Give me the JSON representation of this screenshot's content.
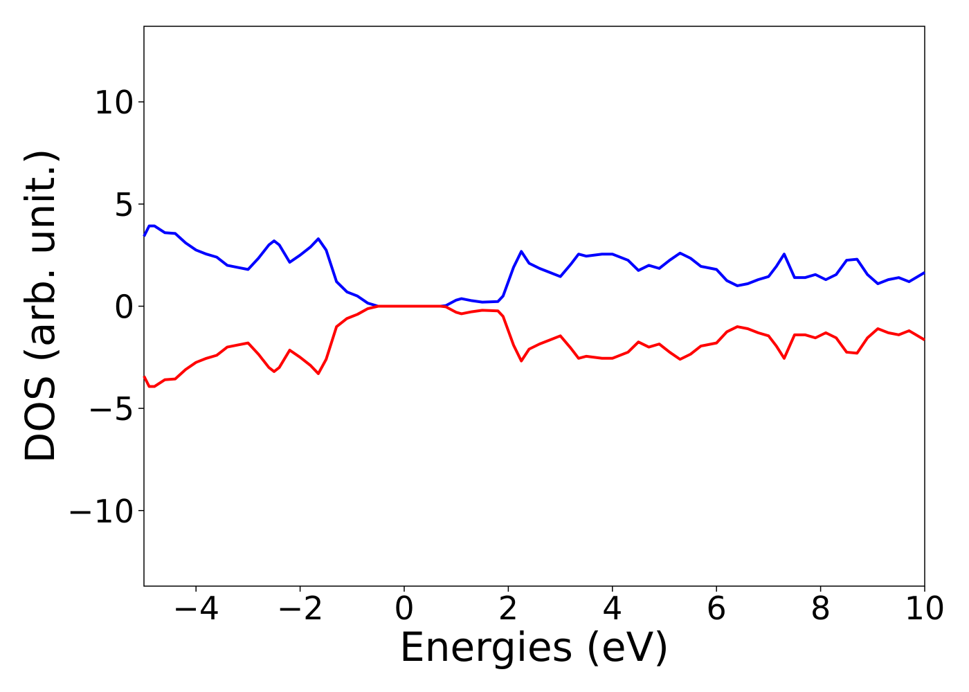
{
  "chart_data": {
    "type": "line",
    "x_label": "Energies (eV)",
    "y_label": "DOS (arb. unit.)",
    "x": [
      -5,
      -4.9,
      -4.8,
      -4.6,
      -4.4,
      -4.2,
      -4.0,
      -3.8,
      -3.6,
      -3.4,
      -3.2,
      -3.0,
      -2.8,
      -2.6,
      -2.5,
      -2.4,
      -2.2,
      -2.0,
      -1.8,
      -1.65,
      -1.5,
      -1.3,
      -1.1,
      -0.9,
      -0.7,
      -0.5,
      0,
      0.7,
      0.8,
      1.0,
      1.1,
      1.3,
      1.5,
      1.8,
      1.9,
      2.1,
      2.25,
      2.4,
      2.6,
      2.8,
      3.0,
      3.2,
      3.35,
      3.5,
      3.8,
      4.0,
      4.3,
      4.5,
      4.7,
      4.9,
      5.1,
      5.3,
      5.5,
      5.7,
      6.0,
      6.2,
      6.4,
      6.6,
      6.8,
      7.0,
      7.15,
      7.3,
      7.5,
      7.7,
      7.9,
      8.1,
      8.3,
      8.5,
      8.7,
      8.9,
      9.1,
      9.3,
      9.5,
      9.7,
      10
    ],
    "series": [
      {
        "color": "#0000ff",
        "values": [
          3.42,
          3.93,
          3.93,
          3.6,
          3.56,
          3.1,
          2.75,
          2.55,
          2.4,
          2.0,
          1.9,
          1.8,
          2.35,
          3.0,
          3.2,
          3.0,
          2.15,
          2.5,
          2.9,
          3.3,
          2.75,
          1.2,
          0.7,
          0.5,
          0.15,
          0,
          0,
          0,
          0.03,
          0.3,
          0.37,
          0.27,
          0.2,
          0.23,
          0.5,
          1.9,
          2.68,
          2.1,
          1.85,
          1.65,
          1.45,
          2.05,
          2.55,
          2.45,
          2.55,
          2.55,
          2.25,
          1.75,
          2.0,
          1.85,
          2.25,
          2.6,
          2.35,
          1.95,
          1.8,
          1.25,
          1.0,
          1.1,
          1.3,
          1.45,
          1.95,
          2.55,
          1.4,
          1.4,
          1.55,
          1.3,
          1.55,
          2.25,
          2.3,
          1.55,
          1.1,
          1.3,
          1.4,
          1.2,
          1.65
        ]
      },
      {
        "color": "#ff0000",
        "values": [
          -3.42,
          -3.93,
          -3.93,
          -3.6,
          -3.56,
          -3.1,
          -2.75,
          -2.55,
          -2.4,
          -2.0,
          -1.9,
          -1.8,
          -2.35,
          -3.0,
          -3.2,
          -3.0,
          -2.15,
          -2.5,
          -2.9,
          -3.3,
          -2.6,
          -1.0,
          -0.6,
          -0.4,
          -0.12,
          0,
          0,
          0,
          -0.03,
          -0.3,
          -0.37,
          -0.27,
          -0.2,
          -0.23,
          -0.5,
          -1.9,
          -2.68,
          -2.1,
          -1.85,
          -1.65,
          -1.45,
          -2.05,
          -2.55,
          -2.45,
          -2.55,
          -2.55,
          -2.25,
          -1.75,
          -2.0,
          -1.85,
          -2.25,
          -2.6,
          -2.35,
          -1.95,
          -1.8,
          -1.25,
          -1.0,
          -1.1,
          -1.3,
          -1.45,
          -1.95,
          -2.55,
          -1.4,
          -1.4,
          -1.55,
          -1.3,
          -1.55,
          -2.25,
          -2.3,
          -1.55,
          -1.1,
          -1.3,
          -1.4,
          -1.2,
          -1.65
        ]
      }
    ],
    "xlim": [
      -5,
      10
    ],
    "xticks": [
      {
        "value": -4,
        "label": "−4"
      },
      {
        "value": -2,
        "label": "−2"
      },
      0,
      2,
      4,
      6,
      8,
      10
    ],
    "ylim": [
      -13.7,
      13.7
    ],
    "yticks": [
      {
        "value": -10,
        "label": "−10"
      },
      {
        "value": -5,
        "label": "−5"
      },
      0,
      5,
      10
    ],
    "grid": false
  }
}
